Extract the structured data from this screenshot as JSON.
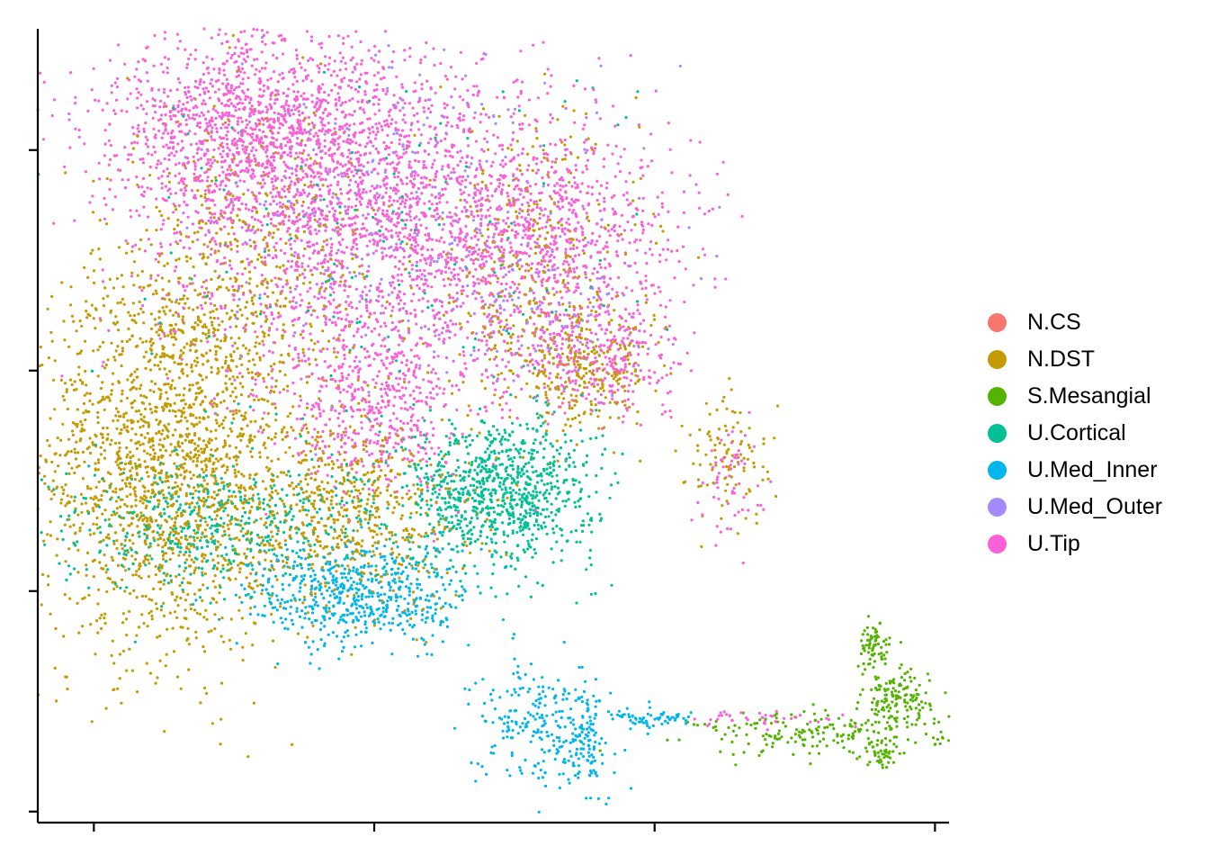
{
  "chart_data": {
    "type": "scatter",
    "title": "",
    "xlabel": "",
    "ylabel": "",
    "xlim": [
      -0.2,
      3.05
    ],
    "ylim": [
      -0.05,
      3.55
    ],
    "x_ticks": [
      0,
      1,
      2,
      3
    ],
    "y_ticks": [
      0,
      1,
      2,
      3
    ],
    "tick_labels_shown": false,
    "grid": false,
    "legend_position": "right",
    "series": [
      {
        "name": "N.CS",
        "color": "#F8766D",
        "clusters": []
      },
      {
        "name": "N.DST",
        "color": "#C49A00",
        "clusters": [
          {
            "cx": 0.25,
            "cy": 1.6,
            "sx": 0.22,
            "sy": 0.45,
            "n": 1800
          },
          {
            "cx": 0.9,
            "cy": 1.35,
            "sx": 0.22,
            "sy": 0.22,
            "n": 600
          },
          {
            "cx": 1.55,
            "cy": 2.45,
            "sx": 0.2,
            "sy": 0.35,
            "n": 350
          },
          {
            "cx": 1.75,
            "cy": 2.0,
            "sx": 0.12,
            "sy": 0.12,
            "n": 260
          },
          {
            "cx": 0.55,
            "cy": 2.4,
            "sx": 0.22,
            "sy": 0.4,
            "n": 500
          },
          {
            "cx": 2.27,
            "cy": 1.6,
            "sx": 0.08,
            "sy": 0.15,
            "n": 100
          }
        ]
      },
      {
        "name": "S.Mesangial",
        "color": "#53B400",
        "clusters": [
          {
            "cx": 2.6,
            "cy": 0.35,
            "sx": 0.22,
            "sy": 0.05,
            "n": 180
          },
          {
            "cx": 2.86,
            "cy": 0.5,
            "sx": 0.06,
            "sy": 0.07,
            "n": 150
          },
          {
            "cx": 2.78,
            "cy": 0.75,
            "sx": 0.03,
            "sy": 0.05,
            "n": 70
          },
          {
            "cx": 2.8,
            "cy": 0.26,
            "sx": 0.03,
            "sy": 0.03,
            "n": 40
          }
        ]
      },
      {
        "name": "U.Cortical",
        "color": "#00C094",
        "clusters": [
          {
            "cx": 1.45,
            "cy": 1.45,
            "sx": 0.17,
            "sy": 0.17,
            "n": 900
          },
          {
            "cx": 0.3,
            "cy": 1.3,
            "sx": 0.22,
            "sy": 0.15,
            "n": 350
          },
          {
            "cx": 0.7,
            "cy": 1.35,
            "sx": 0.2,
            "sy": 0.12,
            "n": 150
          },
          {
            "cx": 1.0,
            "cy": 2.5,
            "sx": 0.5,
            "sy": 0.5,
            "n": 150
          }
        ]
      },
      {
        "name": "U.Med_Inner",
        "color": "#00B6EB",
        "clusters": [
          {
            "cx": 0.95,
            "cy": 0.98,
            "sx": 0.2,
            "sy": 0.12,
            "n": 600
          },
          {
            "cx": 1.6,
            "cy": 0.4,
            "sx": 0.12,
            "sy": 0.14,
            "n": 250
          },
          {
            "cx": 1.76,
            "cy": 0.32,
            "sx": 0.025,
            "sy": 0.1,
            "n": 80
          },
          {
            "cx": 2.0,
            "cy": 0.42,
            "sx": 0.08,
            "sy": 0.015,
            "n": 60
          }
        ]
      },
      {
        "name": "U.Med_Outer",
        "color": "#A58AFF",
        "clusters": [
          {
            "cx": 1.1,
            "cy": 2.7,
            "sx": 0.35,
            "sy": 0.35,
            "n": 300
          },
          {
            "cx": 1.6,
            "cy": 2.3,
            "sx": 0.2,
            "sy": 0.2,
            "n": 100
          }
        ]
      },
      {
        "name": "U.Tip",
        "color": "#FB61D7",
        "clusters": [
          {
            "cx": 0.6,
            "cy": 3.1,
            "sx": 0.3,
            "sy": 0.22,
            "n": 1400
          },
          {
            "cx": 1.05,
            "cy": 2.65,
            "sx": 0.4,
            "sy": 0.35,
            "n": 2000
          },
          {
            "cx": 1.0,
            "cy": 1.85,
            "sx": 0.18,
            "sy": 0.2,
            "n": 500
          },
          {
            "cx": 1.65,
            "cy": 2.6,
            "sx": 0.22,
            "sy": 0.25,
            "n": 600
          },
          {
            "cx": 1.8,
            "cy": 2.05,
            "sx": 0.15,
            "sy": 0.12,
            "n": 300
          },
          {
            "cx": 2.27,
            "cy": 1.5,
            "sx": 0.06,
            "sy": 0.12,
            "n": 60
          },
          {
            "cx": 2.4,
            "cy": 0.42,
            "sx": 0.15,
            "sy": 0.02,
            "n": 40
          }
        ]
      }
    ]
  }
}
